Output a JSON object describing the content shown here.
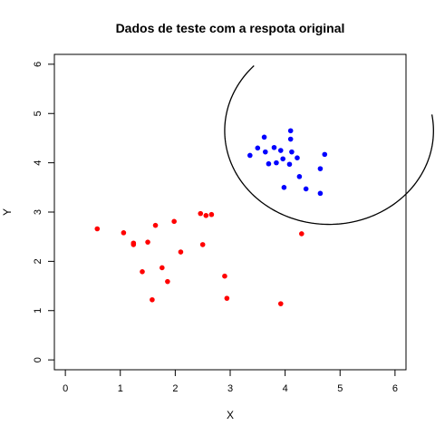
{
  "chart_data": {
    "type": "scatter",
    "title": "Dados de teste com a respota original",
    "xlabel": "X",
    "ylabel": "Y",
    "xlim": [
      -0.2,
      6.2
    ],
    "ylim": [
      -0.2,
      6.2
    ],
    "x_ticks": [
      "0",
      "1",
      "2",
      "3",
      "4",
      "5",
      "6"
    ],
    "y_ticks": [
      "0",
      "1",
      "2",
      "3",
      "4",
      "5",
      "6"
    ],
    "grid": false,
    "legend": "none",
    "series": [
      {
        "color": "#ff0000",
        "points": [
          [
            0.58,
            2.66
          ],
          [
            1.06,
            2.58
          ],
          [
            1.24,
            2.34
          ],
          [
            1.24,
            2.37
          ],
          [
            1.5,
            2.39
          ],
          [
            1.64,
            2.73
          ],
          [
            1.98,
            2.81
          ],
          [
            2.1,
            2.19
          ],
          [
            2.46,
            2.97
          ],
          [
            2.56,
            2.93
          ],
          [
            2.66,
            2.95
          ],
          [
            2.5,
            2.34
          ],
          [
            1.76,
            1.87
          ],
          [
            1.4,
            1.79
          ],
          [
            1.86,
            1.59
          ],
          [
            1.58,
            1.22
          ],
          [
            2.9,
            1.7
          ],
          [
            2.94,
            1.25
          ],
          [
            3.92,
            1.14
          ],
          [
            4.3,
            2.56
          ]
        ]
      },
      {
        "color": "#0000ff",
        "points": [
          [
            3.62,
            4.52
          ],
          [
            4.1,
            4.65
          ],
          [
            4.1,
            4.48
          ],
          [
            3.8,
            4.31
          ],
          [
            3.5,
            4.3
          ],
          [
            3.64,
            4.22
          ],
          [
            3.92,
            4.25
          ],
          [
            4.12,
            4.22
          ],
          [
            3.36,
            4.15
          ],
          [
            3.96,
            4.08
          ],
          [
            4.22,
            4.1
          ],
          [
            4.72,
            4.17
          ],
          [
            3.7,
            3.98
          ],
          [
            3.84,
            4.0
          ],
          [
            4.08,
            3.97
          ],
          [
            4.64,
            3.88
          ],
          [
            4.26,
            3.72
          ],
          [
            3.98,
            3.5
          ],
          [
            4.38,
            3.47
          ],
          [
            4.64,
            3.38
          ]
        ]
      }
    ],
    "curve": {
      "color": "#000000",
      "center": [
        4.8,
        4.65
      ],
      "radius": 1.9,
      "start_deg": 136,
      "end_deg": 370
    }
  }
}
